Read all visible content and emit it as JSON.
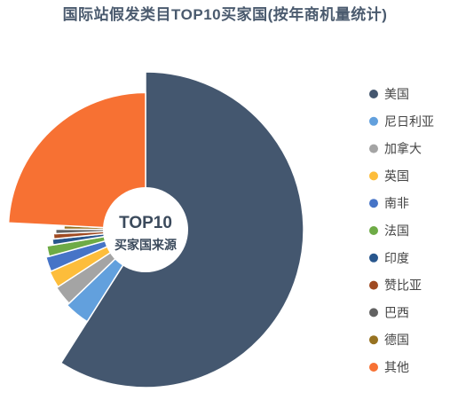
{
  "chart_data": {
    "type": "pie",
    "title": "国际站假发类目TOP10买家国(按年商机量统计)",
    "center_label": [
      "TOP10",
      "买家国来源"
    ],
    "legend_position": "right",
    "grid": false,
    "slices": [
      {
        "name": "美国",
        "value": 59.0,
        "color": "#44576f"
      },
      {
        "name": "尼日利亚",
        "value": 3.8,
        "color": "#62a0dd"
      },
      {
        "name": "加拿大",
        "value": 3.0,
        "color": "#a4a4a4"
      },
      {
        "name": "英国",
        "value": 2.6,
        "color": "#fdbd3b"
      },
      {
        "name": "南非",
        "value": 2.3,
        "color": "#4674c7"
      },
      {
        "name": "法国",
        "value": 1.7,
        "color": "#6eab46"
      },
      {
        "name": "印度",
        "value": 1.0,
        "color": "#28568d"
      },
      {
        "name": "赞比亚",
        "value": 0.9,
        "color": "#9f4a22"
      },
      {
        "name": "巴西",
        "value": 0.8,
        "color": "#626262"
      },
      {
        "name": "德国",
        "value": 0.7,
        "color": "#977221"
      },
      {
        "name": "其他",
        "value": 24.2,
        "color": "#f77133"
      }
    ]
  }
}
